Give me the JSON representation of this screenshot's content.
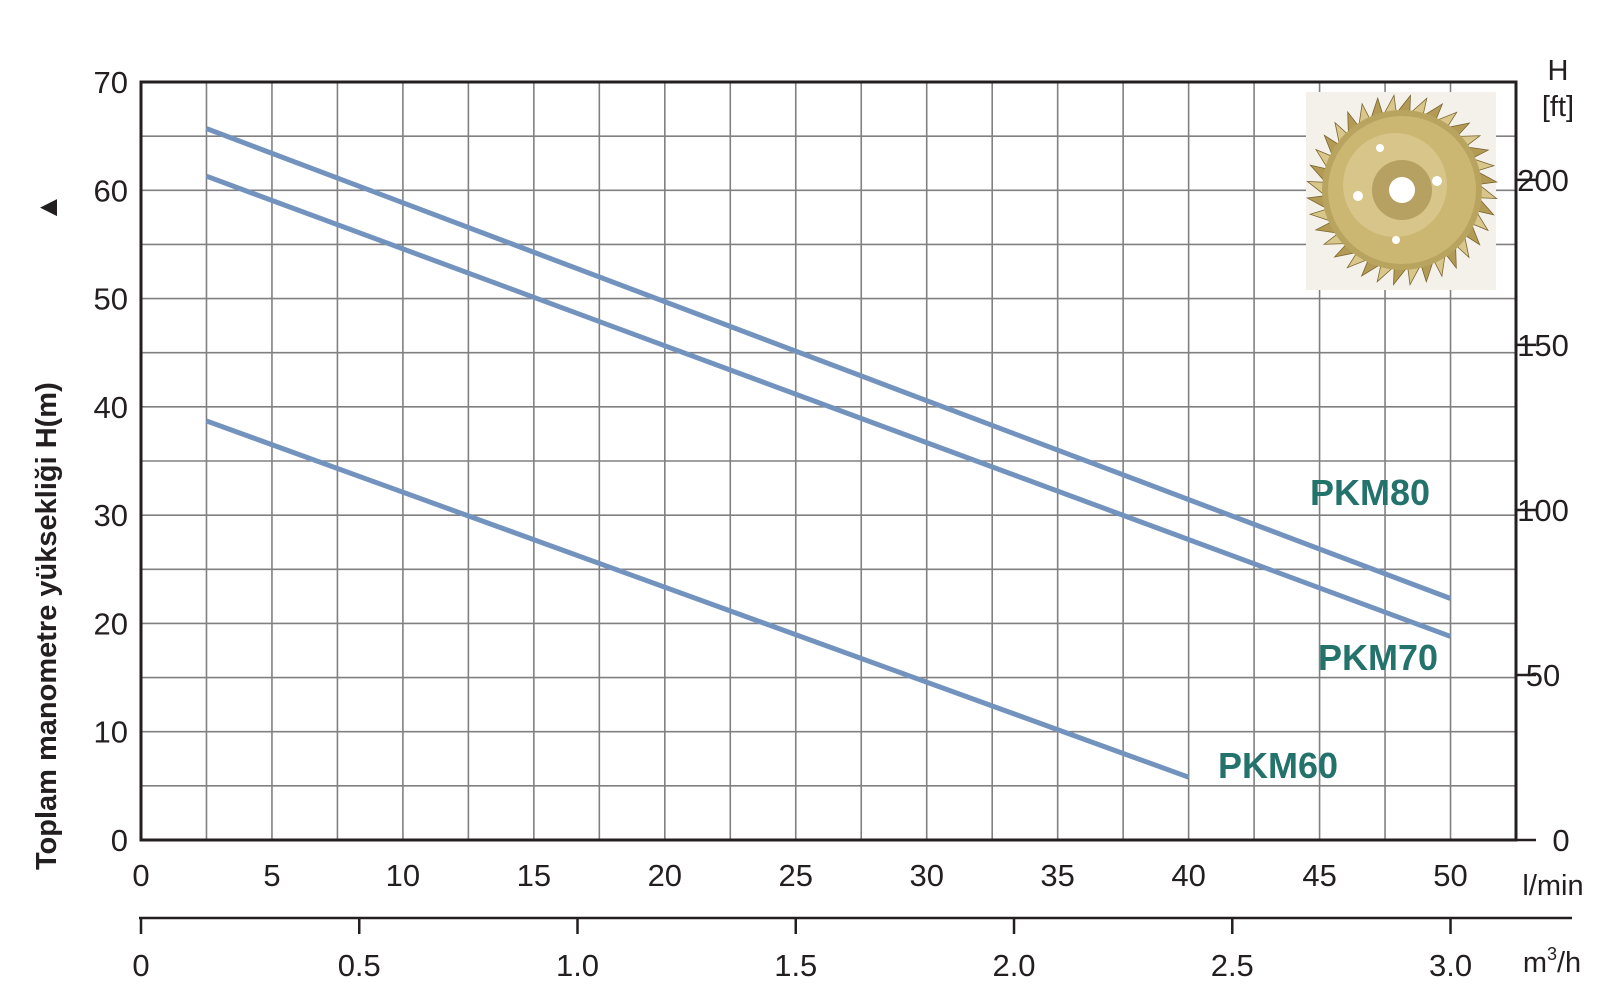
{
  "chart_data": {
    "type": "line",
    "title": "",
    "ylabel": "Toplam manometre yüksekliği  H(m)",
    "ylabel_arrow": "▲",
    "y_right_label": [
      "H",
      "[ft]"
    ],
    "x_units": "l/min",
    "x2_units": "m3/h",
    "xlim": [
      0,
      52.5
    ],
    "ylim": [
      0,
      70
    ],
    "grid": true,
    "x_ticks": [
      0,
      5,
      10,
      15,
      20,
      25,
      30,
      35,
      40,
      45,
      50
    ],
    "y_ticks": [
      0,
      10,
      20,
      30,
      40,
      50,
      60,
      70
    ],
    "y_right_ticks": [
      0,
      50,
      100,
      150,
      200
    ],
    "x2_ticks": [
      "0",
      "0.5",
      "1.0",
      "1.5",
      "2.0",
      "2.5",
      "3.0"
    ],
    "line_color": "#7393bf",
    "label_color": "#23726b",
    "series": [
      {
        "name": "PKM80",
        "x": [
          2.5,
          50
        ],
        "y": [
          65.7,
          22.3
        ]
      },
      {
        "name": "PKM70",
        "x": [
          2.5,
          50
        ],
        "y": [
          61.3,
          18.8
        ]
      },
      {
        "name": "PKM60",
        "x": [
          2.5,
          40
        ],
        "y": [
          38.7,
          5.8
        ]
      }
    ]
  },
  "inset": {
    "icon": "impeller-photo",
    "colors": [
      "#b39a55",
      "#d8c68a",
      "#7a6630"
    ]
  }
}
